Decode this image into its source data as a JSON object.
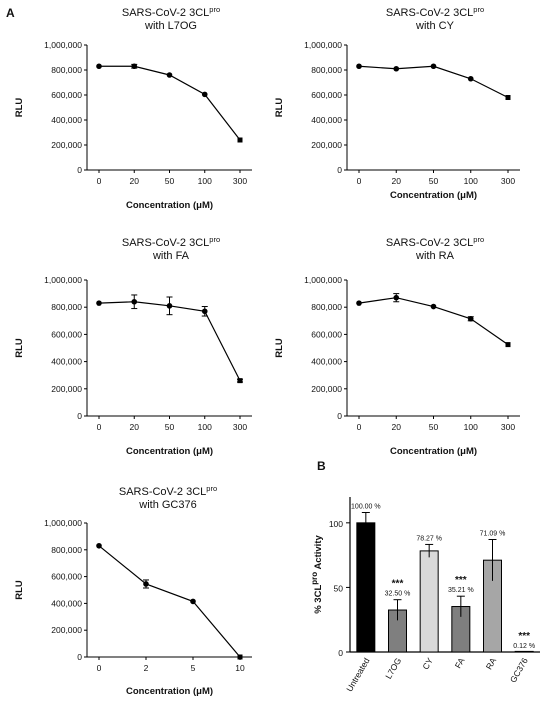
{
  "panel_labels": [
    "A",
    "B"
  ],
  "chart_data": [
    {
      "type": "line",
      "title": "SARS-CoV-2 3CL",
      "title_sup": "pro",
      "subtitle": "with L7OG",
      "xlabel": "Concentration (μM)",
      "ylabel": "RLU",
      "categories": [
        "0",
        "20",
        "50",
        "100",
        "300"
      ],
      "yticks": [
        "0",
        "200,000",
        "400,000",
        "600,000",
        "800,000",
        "1,000,000"
      ],
      "ylim": [
        0,
        1000000
      ],
      "series": [
        {
          "values": [
            830000,
            830000,
            760000,
            605000,
            240000
          ],
          "errors": [
            0,
            15000,
            0,
            0,
            0
          ]
        }
      ]
    },
    {
      "type": "line",
      "title": "SARS-CoV-2 3CL",
      "title_sup": "pro",
      "subtitle": "with CY",
      "xlabel": "Concentration (μM)",
      "ylabel": "RLU",
      "categories": [
        "0",
        "20",
        "50",
        "100",
        "300"
      ],
      "yticks": [
        "0",
        "200,000",
        "400,000",
        "600,000",
        "800,000",
        "1,000,000"
      ],
      "ylim": [
        0,
        1000000
      ],
      "series": [
        {
          "values": [
            830000,
            810000,
            830000,
            730000,
            580000
          ],
          "errors": [
            0,
            0,
            0,
            0,
            0
          ]
        }
      ]
    },
    {
      "type": "line",
      "title": "SARS-CoV-2 3CL",
      "title_sup": "pro",
      "subtitle": "with FA",
      "xlabel": "Concentration (μM)",
      "ylabel": "RLU",
      "categories": [
        "0",
        "20",
        "50",
        "100",
        "300"
      ],
      "yticks": [
        "0",
        "200,000",
        "400,000",
        "600,000",
        "800,000",
        "1,000,000"
      ],
      "ylim": [
        0,
        1000000
      ],
      "series": [
        {
          "values": [
            830000,
            840000,
            810000,
            770000,
            260000
          ],
          "errors": [
            0,
            50000,
            65000,
            35000,
            10000
          ]
        }
      ]
    },
    {
      "type": "line",
      "title": "SARS-CoV-2 3CL",
      "title_sup": "pro",
      "subtitle": "with RA",
      "xlabel": "Concentration (μM)",
      "ylabel": "RLU",
      "categories": [
        "0",
        "20",
        "50",
        "100",
        "300"
      ],
      "yticks": [
        "0",
        "200,000",
        "400,000",
        "600,000",
        "800,000",
        "1,000,000"
      ],
      "ylim": [
        0,
        1000000
      ],
      "series": [
        {
          "values": [
            830000,
            870000,
            805000,
            715000,
            525000
          ],
          "errors": [
            0,
            30000,
            0,
            15000,
            0
          ]
        }
      ]
    },
    {
      "type": "line",
      "title": "SARS-CoV-2 3CL",
      "title_sup": "pro",
      "subtitle": "with GC376",
      "xlabel": "Concentration (μM)",
      "ylabel": "RLU",
      "categories": [
        "0",
        "2",
        "5",
        "10"
      ],
      "yticks": [
        "0",
        "200,000",
        "400,000",
        "600,000",
        "800,000",
        "1,000,000"
      ],
      "ylim": [
        0,
        1000000
      ],
      "series": [
        {
          "values": [
            830000,
            545000,
            415000,
            0
          ],
          "errors": [
            0,
            30000,
            0,
            0
          ]
        }
      ]
    },
    {
      "type": "bar",
      "ylabel": "% 3CL",
      "ylabel_sup": "pro",
      "ylabel_tail": " Activity",
      "categories": [
        "Untreated",
        "L7OG",
        "CY",
        "FA",
        "RA",
        "GC376"
      ],
      "values": [
        100.0,
        32.5,
        78.27,
        35.21,
        71.09,
        0.12
      ],
      "errors": [
        8,
        8,
        5,
        8,
        16,
        0
      ],
      "value_labels": [
        "100.00 %",
        "32.50 %",
        "78.27 %",
        "35.21 %",
        "71.09 %",
        "0.12 %"
      ],
      "significance": [
        "",
        "***",
        "",
        "***",
        "",
        "***"
      ],
      "bar_colors": [
        "#000000",
        "#7f7f7f",
        "#d9d9d9",
        "#7f7f7f",
        "#a6a6a6",
        "#ffffff"
      ],
      "yticks": [
        "0",
        "50",
        "100"
      ],
      "ylim": [
        0,
        120
      ]
    }
  ]
}
